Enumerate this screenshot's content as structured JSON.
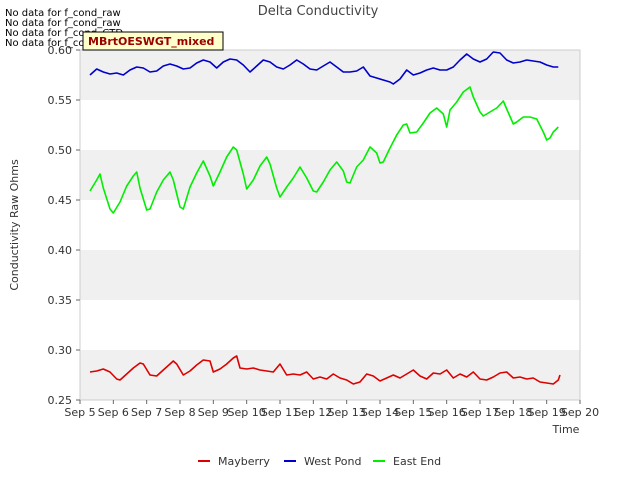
{
  "no_data_messages": [
    "No data for f_cond_raw",
    "No data for f_cond_raw",
    "No data for f_cond_CTD",
    "No data for f_cond_CTD"
  ],
  "chart_data": {
    "type": "line",
    "title": "Delta Conductivity",
    "xlabel": "Time",
    "ylabel": "Conductivity Raw Ohms",
    "badge": "MBrtOESWGT_mixed",
    "ylim": [
      0.25,
      0.6
    ],
    "xlim": [
      5,
      20
    ],
    "yticks": [
      0.25,
      0.3,
      0.35,
      0.4,
      0.45,
      0.5,
      0.55,
      0.6
    ],
    "ytick_labels": [
      "0.25",
      "0.30",
      "0.35",
      "0.40",
      "0.45",
      "0.50",
      "0.55",
      "0.60"
    ],
    "xticks": [
      5,
      6,
      7,
      8,
      9,
      10,
      11,
      12,
      13,
      14,
      15,
      16,
      17,
      18,
      19,
      20
    ],
    "xtick_labels": [
      "Sep 5",
      "Sep 6",
      "Sep 7",
      "Sep 8",
      "Sep 9",
      "Sep 10",
      "Sep 11",
      "Sep 12",
      "Sep 13",
      "Sep 14",
      "Sep 15",
      "Sep 16",
      "Sep 17",
      "Sep 18",
      "Sep 19",
      "Sep 20"
    ],
    "grid": "horizontal bands",
    "legend_position": "bottom",
    "series": [
      {
        "name": "Mayberry",
        "color": "#dd0000",
        "points": [
          [
            5.3,
            0.278
          ],
          [
            5.5,
            0.279
          ],
          [
            5.7,
            0.281
          ],
          [
            5.9,
            0.278
          ],
          [
            6.1,
            0.271
          ],
          [
            6.2,
            0.27
          ],
          [
            6.4,
            0.276
          ],
          [
            6.6,
            0.282
          ],
          [
            6.8,
            0.287
          ],
          [
            6.9,
            0.286
          ],
          [
            7.1,
            0.275
          ],
          [
            7.3,
            0.274
          ],
          [
            7.5,
            0.28
          ],
          [
            7.7,
            0.286
          ],
          [
            7.8,
            0.289
          ],
          [
            7.9,
            0.286
          ],
          [
            8.1,
            0.275
          ],
          [
            8.3,
            0.279
          ],
          [
            8.5,
            0.285
          ],
          [
            8.7,
            0.29
          ],
          [
            8.9,
            0.289
          ],
          [
            9.0,
            0.278
          ],
          [
            9.2,
            0.281
          ],
          [
            9.4,
            0.286
          ],
          [
            9.6,
            0.292
          ],
          [
            9.7,
            0.294
          ],
          [
            9.8,
            0.282
          ],
          [
            10.0,
            0.281
          ],
          [
            10.2,
            0.282
          ],
          [
            10.4,
            0.28
          ],
          [
            10.6,
            0.279
          ],
          [
            10.8,
            0.278
          ],
          [
            11.0,
            0.286
          ],
          [
            11.2,
            0.275
          ],
          [
            11.4,
            0.276
          ],
          [
            11.6,
            0.275
          ],
          [
            11.8,
            0.278
          ],
          [
            12.0,
            0.271
          ],
          [
            12.2,
            0.273
          ],
          [
            12.4,
            0.271
          ],
          [
            12.6,
            0.276
          ],
          [
            12.8,
            0.272
          ],
          [
            13.0,
            0.27
          ],
          [
            13.2,
            0.266
          ],
          [
            13.4,
            0.268
          ],
          [
            13.6,
            0.276
          ],
          [
            13.8,
            0.274
          ],
          [
            14.0,
            0.269
          ],
          [
            14.2,
            0.272
          ],
          [
            14.4,
            0.275
          ],
          [
            14.6,
            0.272
          ],
          [
            14.8,
            0.276
          ],
          [
            15.0,
            0.28
          ],
          [
            15.2,
            0.274
          ],
          [
            15.4,
            0.271
          ],
          [
            15.6,
            0.277
          ],
          [
            15.8,
            0.276
          ],
          [
            16.0,
            0.28
          ],
          [
            16.2,
            0.272
          ],
          [
            16.4,
            0.276
          ],
          [
            16.6,
            0.273
          ],
          [
            16.8,
            0.278
          ],
          [
            17.0,
            0.271
          ],
          [
            17.2,
            0.27
          ],
          [
            17.4,
            0.273
          ],
          [
            17.6,
            0.277
          ],
          [
            17.8,
            0.278
          ],
          [
            18.0,
            0.272
          ],
          [
            18.2,
            0.273
          ],
          [
            18.4,
            0.271
          ],
          [
            18.6,
            0.272
          ],
          [
            18.8,
            0.268
          ],
          [
            19.0,
            0.267
          ],
          [
            19.2,
            0.266
          ],
          [
            19.35,
            0.27
          ],
          [
            19.4,
            0.275
          ]
        ]
      },
      {
        "name": "West Pond",
        "color": "#0000cc",
        "points": [
          [
            5.3,
            0.575
          ],
          [
            5.5,
            0.581
          ],
          [
            5.7,
            0.578
          ],
          [
            5.9,
            0.576
          ],
          [
            6.1,
            0.577
          ],
          [
            6.3,
            0.575
          ],
          [
            6.5,
            0.58
          ],
          [
            6.7,
            0.583
          ],
          [
            6.9,
            0.582
          ],
          [
            7.1,
            0.578
          ],
          [
            7.3,
            0.579
          ],
          [
            7.5,
            0.584
          ],
          [
            7.7,
            0.586
          ],
          [
            7.9,
            0.584
          ],
          [
            8.1,
            0.581
          ],
          [
            8.3,
            0.582
          ],
          [
            8.5,
            0.587
          ],
          [
            8.7,
            0.59
          ],
          [
            8.9,
            0.588
          ],
          [
            9.1,
            0.582
          ],
          [
            9.3,
            0.588
          ],
          [
            9.5,
            0.591
          ],
          [
            9.7,
            0.59
          ],
          [
            9.9,
            0.585
          ],
          [
            10.1,
            0.578
          ],
          [
            10.3,
            0.584
          ],
          [
            10.5,
            0.59
          ],
          [
            10.7,
            0.588
          ],
          [
            10.9,
            0.583
          ],
          [
            11.1,
            0.581
          ],
          [
            11.3,
            0.585
          ],
          [
            11.5,
            0.59
          ],
          [
            11.7,
            0.586
          ],
          [
            11.9,
            0.581
          ],
          [
            12.1,
            0.58
          ],
          [
            12.3,
            0.584
          ],
          [
            12.5,
            0.588
          ],
          [
            12.7,
            0.583
          ],
          [
            12.9,
            0.578
          ],
          [
            13.1,
            0.578
          ],
          [
            13.3,
            0.579
          ],
          [
            13.5,
            0.583
          ],
          [
            13.7,
            0.574
          ],
          [
            13.9,
            0.572
          ],
          [
            14.1,
            0.57
          ],
          [
            14.3,
            0.568
          ],
          [
            14.4,
            0.566
          ],
          [
            14.6,
            0.571
          ],
          [
            14.8,
            0.58
          ],
          [
            15.0,
            0.575
          ],
          [
            15.2,
            0.577
          ],
          [
            15.4,
            0.58
          ],
          [
            15.6,
            0.582
          ],
          [
            15.8,
            0.58
          ],
          [
            16.0,
            0.58
          ],
          [
            16.2,
            0.583
          ],
          [
            16.4,
            0.59
          ],
          [
            16.6,
            0.596
          ],
          [
            16.8,
            0.591
          ],
          [
            17.0,
            0.588
          ],
          [
            17.2,
            0.591
          ],
          [
            17.4,
            0.598
          ],
          [
            17.6,
            0.597
          ],
          [
            17.8,
            0.59
          ],
          [
            18.0,
            0.587
          ],
          [
            18.2,
            0.588
          ],
          [
            18.4,
            0.59
          ],
          [
            18.6,
            0.589
          ],
          [
            18.8,
            0.588
          ],
          [
            19.0,
            0.585
          ],
          [
            19.2,
            0.583
          ],
          [
            19.35,
            0.583
          ]
        ]
      },
      {
        "name": "East End",
        "color": "#00ee00",
        "points": [
          [
            5.3,
            0.459
          ],
          [
            5.5,
            0.47
          ],
          [
            5.6,
            0.476
          ],
          [
            5.7,
            0.462
          ],
          [
            5.9,
            0.441
          ],
          [
            6.0,
            0.437
          ],
          [
            6.2,
            0.448
          ],
          [
            6.4,
            0.464
          ],
          [
            6.6,
            0.474
          ],
          [
            6.7,
            0.478
          ],
          [
            6.8,
            0.462
          ],
          [
            7.0,
            0.44
          ],
          [
            7.1,
            0.441
          ],
          [
            7.3,
            0.458
          ],
          [
            7.5,
            0.47
          ],
          [
            7.7,
            0.478
          ],
          [
            7.8,
            0.47
          ],
          [
            8.0,
            0.443
          ],
          [
            8.1,
            0.441
          ],
          [
            8.3,
            0.463
          ],
          [
            8.5,
            0.477
          ],
          [
            8.7,
            0.489
          ],
          [
            8.9,
            0.474
          ],
          [
            9.0,
            0.464
          ],
          [
            9.2,
            0.478
          ],
          [
            9.4,
            0.493
          ],
          [
            9.6,
            0.503
          ],
          [
            9.7,
            0.5
          ],
          [
            9.9,
            0.476
          ],
          [
            10.0,
            0.461
          ],
          [
            10.2,
            0.47
          ],
          [
            10.4,
            0.484
          ],
          [
            10.6,
            0.493
          ],
          [
            10.7,
            0.486
          ],
          [
            10.9,
            0.462
          ],
          [
            11.0,
            0.453
          ],
          [
            11.2,
            0.463
          ],
          [
            11.4,
            0.472
          ],
          [
            11.6,
            0.483
          ],
          [
            11.8,
            0.472
          ],
          [
            12.0,
            0.459
          ],
          [
            12.1,
            0.458
          ],
          [
            12.3,
            0.468
          ],
          [
            12.5,
            0.48
          ],
          [
            12.7,
            0.488
          ],
          [
            12.9,
            0.479
          ],
          [
            13.0,
            0.468
          ],
          [
            13.1,
            0.467
          ],
          [
            13.3,
            0.483
          ],
          [
            13.5,
            0.49
          ],
          [
            13.7,
            0.503
          ],
          [
            13.9,
            0.497
          ],
          [
            14.0,
            0.487
          ],
          [
            14.1,
            0.488
          ],
          [
            14.3,
            0.502
          ],
          [
            14.5,
            0.515
          ],
          [
            14.7,
            0.525
          ],
          [
            14.8,
            0.526
          ],
          [
            14.9,
            0.517
          ],
          [
            15.1,
            0.518
          ],
          [
            15.3,
            0.527
          ],
          [
            15.5,
            0.537
          ],
          [
            15.7,
            0.542
          ],
          [
            15.9,
            0.536
          ],
          [
            16.0,
            0.523
          ],
          [
            16.1,
            0.54
          ],
          [
            16.3,
            0.548
          ],
          [
            16.5,
            0.558
          ],
          [
            16.7,
            0.563
          ],
          [
            16.8,
            0.553
          ],
          [
            17.0,
            0.538
          ],
          [
            17.1,
            0.534
          ],
          [
            17.3,
            0.538
          ],
          [
            17.5,
            0.542
          ],
          [
            17.7,
            0.549
          ],
          [
            17.8,
            0.541
          ],
          [
            18.0,
            0.526
          ],
          [
            18.1,
            0.528
          ],
          [
            18.3,
            0.533
          ],
          [
            18.5,
            0.533
          ],
          [
            18.7,
            0.531
          ],
          [
            18.9,
            0.518
          ],
          [
            19.0,
            0.51
          ],
          [
            19.1,
            0.512
          ],
          [
            19.2,
            0.518
          ],
          [
            19.35,
            0.523
          ]
        ]
      }
    ]
  }
}
